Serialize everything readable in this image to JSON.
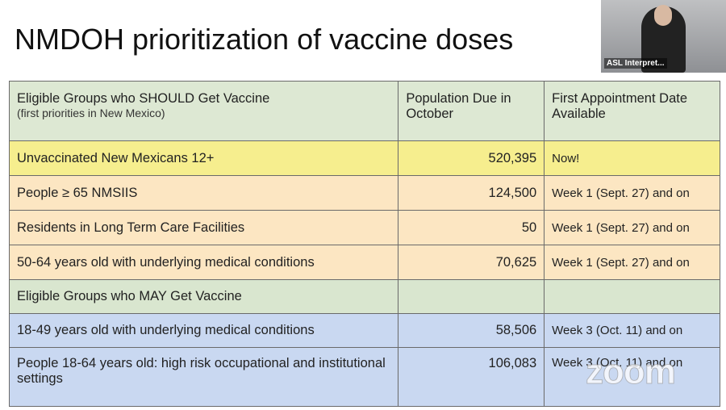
{
  "title": "NMDOH prioritization of vaccine doses",
  "video": {
    "label": "ASL Interpret..."
  },
  "watermark": "zoom",
  "table": {
    "header": [
      "Eligible Groups who SHOULD Get Vaccine",
      "Population Due in October",
      "First Appointment Date Available"
    ],
    "subheader": "(first priorities in New Mexico)",
    "rows": [
      [
        "Unvaccinated New Mexicans 12+",
        "520,395",
        "Now!"
      ],
      [
        "People ≥ 65  NMSIIS",
        "124,500",
        "Week 1 (Sept. 27) and on"
      ],
      [
        "Residents in Long Term Care Facilities",
        "50",
        "Week 1 (Sept. 27) and on"
      ],
      [
        "50-64 years old with underlying medical conditions",
        "70,625",
        "Week 1 (Sept. 27) and on"
      ],
      [
        "Eligible Groups who MAY Get Vaccine"
      ],
      [
        "18-49 years old with underlying medical conditions",
        "58,506",
        "Week 3 (Oct. 11) and on"
      ],
      [
        "People 18-64 years old: high risk occupational and institutional settings",
        "106,083",
        "Week 3 (Oct. 11) and on"
      ]
    ]
  }
}
